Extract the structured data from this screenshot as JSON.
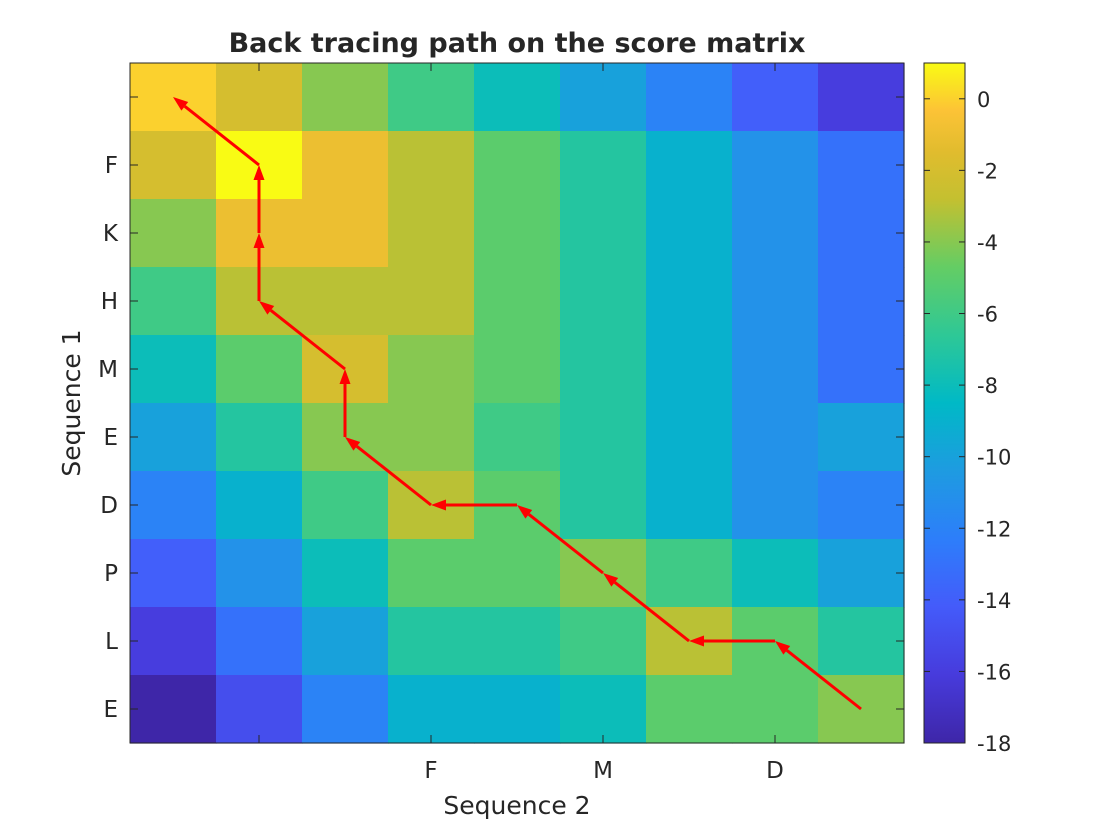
{
  "chart_data": {
    "type": "heatmap",
    "title": "Back tracing path on the score matrix",
    "xlabel": "Sequence 2",
    "ylabel": "Sequence 1",
    "x_tick_labels": [
      "",
      "",
      "",
      "F",
      "",
      "M",
      "",
      "D",
      ""
    ],
    "x_labeled_ticks": [
      {
        "col": 3,
        "label": "F"
      },
      {
        "col": 5,
        "label": "M"
      },
      {
        "col": 7,
        "label": "D"
      }
    ],
    "x_unlabeled_ticks": [
      1
    ],
    "y_tick_labels": [
      "",
      "F",
      "K",
      "H",
      "M",
      "E",
      "D",
      "P",
      "L",
      "E"
    ],
    "colorbar": {
      "min": -18,
      "max": 1,
      "ticks": [
        0,
        -2,
        -4,
        -6,
        -8,
        -10,
        -12,
        -14,
        -16,
        -18
      ],
      "tick_labels": [
        "0",
        "-2",
        "-4",
        "-6",
        "-8",
        "-10",
        "-12",
        "-14",
        "-16",
        "-18"
      ],
      "colormap": "parula"
    },
    "matrix": [
      [
        0,
        -2,
        -4,
        -6,
        -8,
        -10,
        -12,
        -14,
        -16
      ],
      [
        -2,
        1,
        -1,
        -3,
        -5,
        -7,
        -9,
        -11,
        -13
      ],
      [
        -4,
        -1,
        -1,
        -3,
        -5,
        -7,
        -9,
        -11,
        -13
      ],
      [
        -6,
        -3,
        -3,
        -3,
        -5,
        -7,
        -9,
        -11,
        -13
      ],
      [
        -8,
        -5,
        -2,
        -4,
        -5,
        -7,
        -9,
        -11,
        -13
      ],
      [
        -10,
        -7,
        -4,
        -4,
        -6,
        -7,
        -9,
        -11,
        -10
      ],
      [
        -12,
        -9,
        -6,
        -3,
        -5,
        -7,
        -9,
        -11,
        -12
      ],
      [
        -14,
        -11,
        -8,
        -5,
        -5,
        -4,
        -6,
        -8,
        -10
      ],
      [
        -16,
        -13,
        -10,
        -7,
        -7,
        -6,
        -3,
        -5,
        -7
      ],
      [
        -18,
        -15,
        -12,
        -9,
        -9,
        -8,
        -5,
        -5,
        -4
      ]
    ],
    "arrows": [
      {
        "from": [
          9,
          8
        ],
        "to": [
          8,
          7
        ]
      },
      {
        "from": [
          8,
          7
        ],
        "to": [
          8,
          6
        ]
      },
      {
        "from": [
          8,
          6
        ],
        "to": [
          7,
          5
        ]
      },
      {
        "from": [
          7,
          5
        ],
        "to": [
          6,
          4
        ]
      },
      {
        "from": [
          6,
          4
        ],
        "to": [
          6,
          3
        ]
      },
      {
        "from": [
          6,
          3
        ],
        "to": [
          5,
          2
        ]
      },
      {
        "from": [
          5,
          2
        ],
        "to": [
          4,
          2
        ]
      },
      {
        "from": [
          4,
          2
        ],
        "to": [
          3,
          1
        ]
      },
      {
        "from": [
          3,
          1
        ],
        "to": [
          2,
          1
        ]
      },
      {
        "from": [
          2,
          1
        ],
        "to": [
          1,
          1
        ]
      },
      {
        "from": [
          1,
          1
        ],
        "to": [
          0,
          0
        ]
      }
    ],
    "arrow_color": "#ff0000"
  }
}
